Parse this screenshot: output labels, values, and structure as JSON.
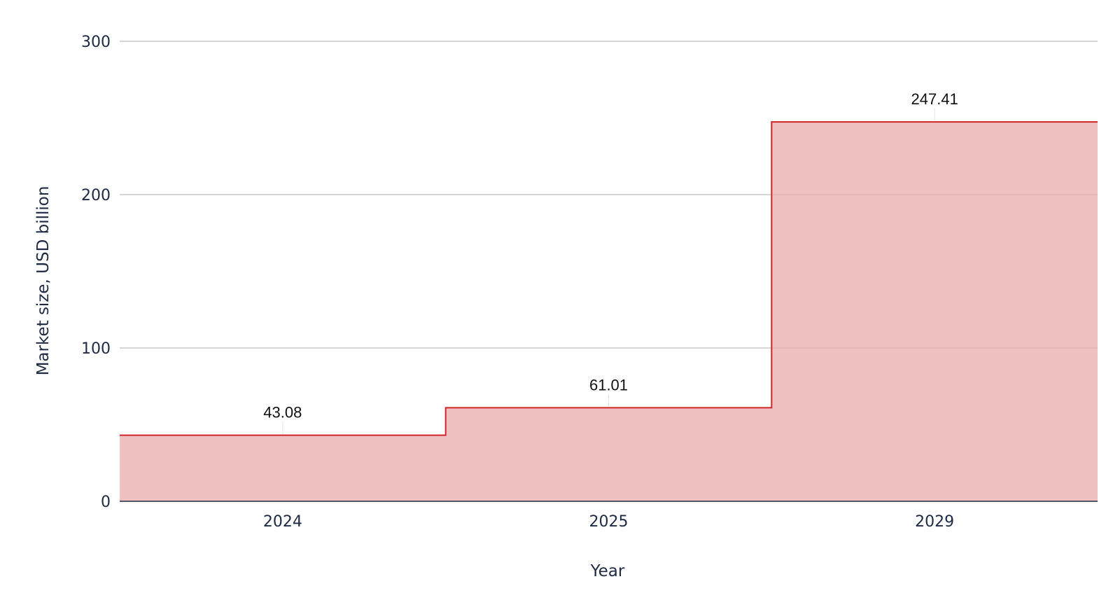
{
  "chart_data": {
    "type": "area",
    "step": true,
    "categories": [
      "2024",
      "2025",
      "2029"
    ],
    "series": [
      {
        "values": [
          43.08,
          61.01,
          247.41
        ]
      }
    ],
    "data_labels": [
      "43.08",
      "61.01",
      "247.41"
    ],
    "xlabel": "Year",
    "ylabel": "Market size, USD billion",
    "ylim": [
      0,
      300
    ],
    "yticks": [
      0,
      100,
      200,
      300
    ],
    "grid": true,
    "colors": {
      "line": "#d0232b",
      "fill": "#efc0c0"
    }
  }
}
